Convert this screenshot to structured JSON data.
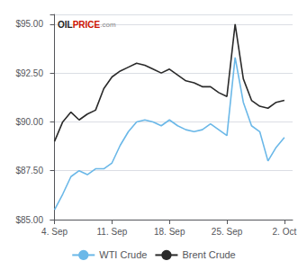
{
  "chart_data": {
    "type": "line",
    "x": [
      0,
      1,
      2,
      3,
      4,
      5,
      6,
      7,
      8,
      9,
      10,
      11,
      12,
      13,
      14,
      15,
      16,
      17,
      18,
      19,
      20,
      21,
      22,
      23,
      24,
      25,
      26,
      27,
      28
    ],
    "series": [
      {
        "name": "WTI Crude",
        "color": "#6bb8e8",
        "values": [
          85.5,
          86.3,
          87.2,
          87.5,
          87.3,
          87.6,
          87.6,
          87.9,
          88.8,
          89.5,
          90.0,
          90.1,
          90.0,
          89.8,
          90.1,
          89.8,
          89.6,
          89.5,
          89.6,
          89.9,
          89.6,
          89.3,
          93.3,
          91.0,
          89.8,
          89.5,
          88.0,
          88.7,
          89.2
        ]
      },
      {
        "name": "Brent Crude",
        "color": "#2a2a2a",
        "values": [
          89.0,
          90.0,
          90.5,
          90.1,
          90.4,
          90.6,
          91.7,
          92.3,
          92.6,
          92.8,
          93.0,
          92.9,
          92.7,
          92.5,
          92.7,
          92.4,
          92.1,
          92.0,
          91.8,
          91.8,
          91.5,
          91.3,
          95.0,
          92.2,
          91.1,
          90.8,
          90.7,
          91.0,
          91.1
        ]
      }
    ],
    "xlim": [
      -0.5,
      29.0
    ],
    "xticks": [
      {
        "value": 0,
        "label": "4. Sep"
      },
      {
        "value": 7,
        "label": "11. Sep"
      },
      {
        "value": 14,
        "label": "18. Sep"
      },
      {
        "value": 21,
        "label": "25. Sep"
      },
      {
        "value": 28,
        "label": "2. Oct"
      }
    ],
    "ylim": [
      85.0,
      95.5
    ],
    "yticks": [
      {
        "value": 85.0,
        "label": "$85.00"
      },
      {
        "value": 87.5,
        "label": "$87.50"
      },
      {
        "value": 90.0,
        "label": "$90.00"
      },
      {
        "value": 92.5,
        "label": "$92.50"
      },
      {
        "value": 95.0,
        "label": "$95.00"
      }
    ],
    "grid": "y",
    "legend": "bottom",
    "annotations": [
      {
        "text": "OIL",
        "color": "#222222"
      },
      {
        "text": "PRICE",
        "color": "#cc1100"
      },
      {
        "text": ".com",
        "color": "#888888"
      }
    ]
  }
}
